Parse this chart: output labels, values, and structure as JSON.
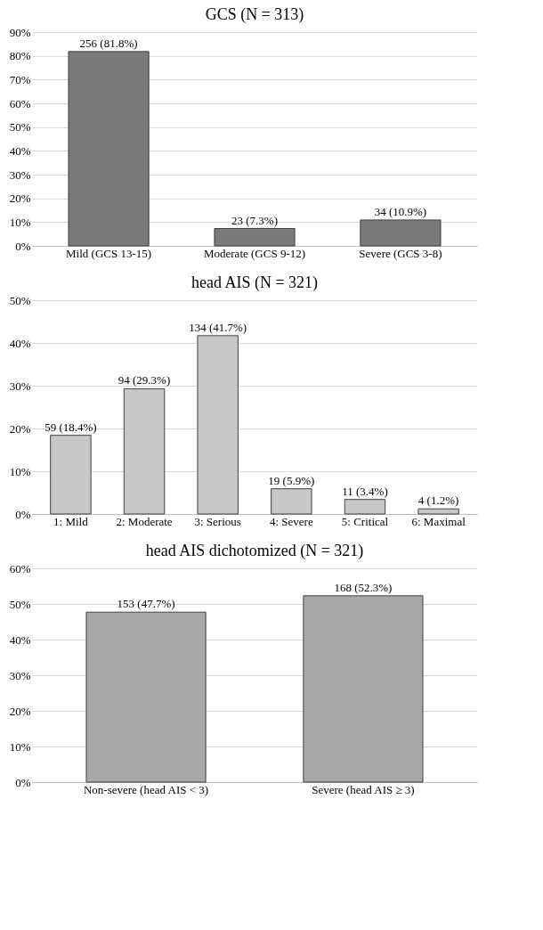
{
  "chart_data": [
    {
      "type": "bar",
      "title": "GCS (N = 313)",
      "categories": [
        "Mild (GCS 13-15)",
        "Moderate (GCS 9-12)",
        "Severe (GCS 3-8)"
      ],
      "series": [
        {
          "color": "#7a7a7a",
          "values": [
            81.8,
            7.3,
            10.9
          ],
          "value_labels": [
            "256 (81.8%)",
            "23 (7.3%)",
            "34 (10.9%)"
          ]
        }
      ],
      "ylim": [
        0,
        90
      ],
      "yticks": [
        {
          "value": 0,
          "label": "0%"
        },
        {
          "value": 10,
          "label": "10%"
        },
        {
          "value": 20,
          "label": "20%"
        },
        {
          "value": 30,
          "label": "30%"
        },
        {
          "value": 40,
          "label": "40%"
        },
        {
          "value": 50,
          "label": "50%"
        },
        {
          "value": 60,
          "label": "60%"
        },
        {
          "value": 70,
          "label": "70%"
        },
        {
          "value": 80,
          "label": "80%"
        },
        {
          "value": 90,
          "label": "90%"
        }
      ],
      "grid": "y"
    },
    {
      "type": "bar",
      "title": "head AIS (N = 321)",
      "categories": [
        "1: Mild",
        "2: Moderate",
        "3: Serious",
        "4: Severe",
        "5: Critical",
        "6: Maximal"
      ],
      "series": [
        {
          "color": "#c8c8c8",
          "values": [
            18.4,
            29.3,
            41.7,
            5.9,
            3.4,
            1.2
          ],
          "value_labels": [
            "59 (18.4%)",
            "94 (29.3%)",
            "134 (41.7%)",
            "19 (5.9%)",
            "11 (3.4%)",
            "4 (1.2%)"
          ]
        }
      ],
      "ylim": [
        0,
        50
      ],
      "yticks": [
        {
          "value": 0,
          "label": "0%"
        },
        {
          "value": 10,
          "label": "10%"
        },
        {
          "value": 20,
          "label": "20%"
        },
        {
          "value": 30,
          "label": "30%"
        },
        {
          "value": 40,
          "label": "40%"
        },
        {
          "value": 50,
          "label": "50%"
        }
      ],
      "grid": "y"
    },
    {
      "type": "bar",
      "title": "head AIS dichotomized  (N = 321)",
      "categories": [
        "Non-severe (head AIS < 3)",
        "Severe (head AIS ≥ 3)"
      ],
      "series": [
        {
          "color": "#a8a8a8",
          "values": [
            47.7,
            52.3
          ],
          "value_labels": [
            "153 (47.7%)",
            "168 (52.3%)"
          ]
        }
      ],
      "ylim": [
        0,
        60
      ],
      "yticks": [
        {
          "value": 0,
          "label": "0%"
        },
        {
          "value": 10,
          "label": "10%"
        },
        {
          "value": 20,
          "label": "20%"
        },
        {
          "value": 30,
          "label": "30%"
        },
        {
          "value": 40,
          "label": "40%"
        },
        {
          "value": 50,
          "label": "50%"
        },
        {
          "value": 60,
          "label": "60%"
        }
      ],
      "grid": "y"
    }
  ]
}
